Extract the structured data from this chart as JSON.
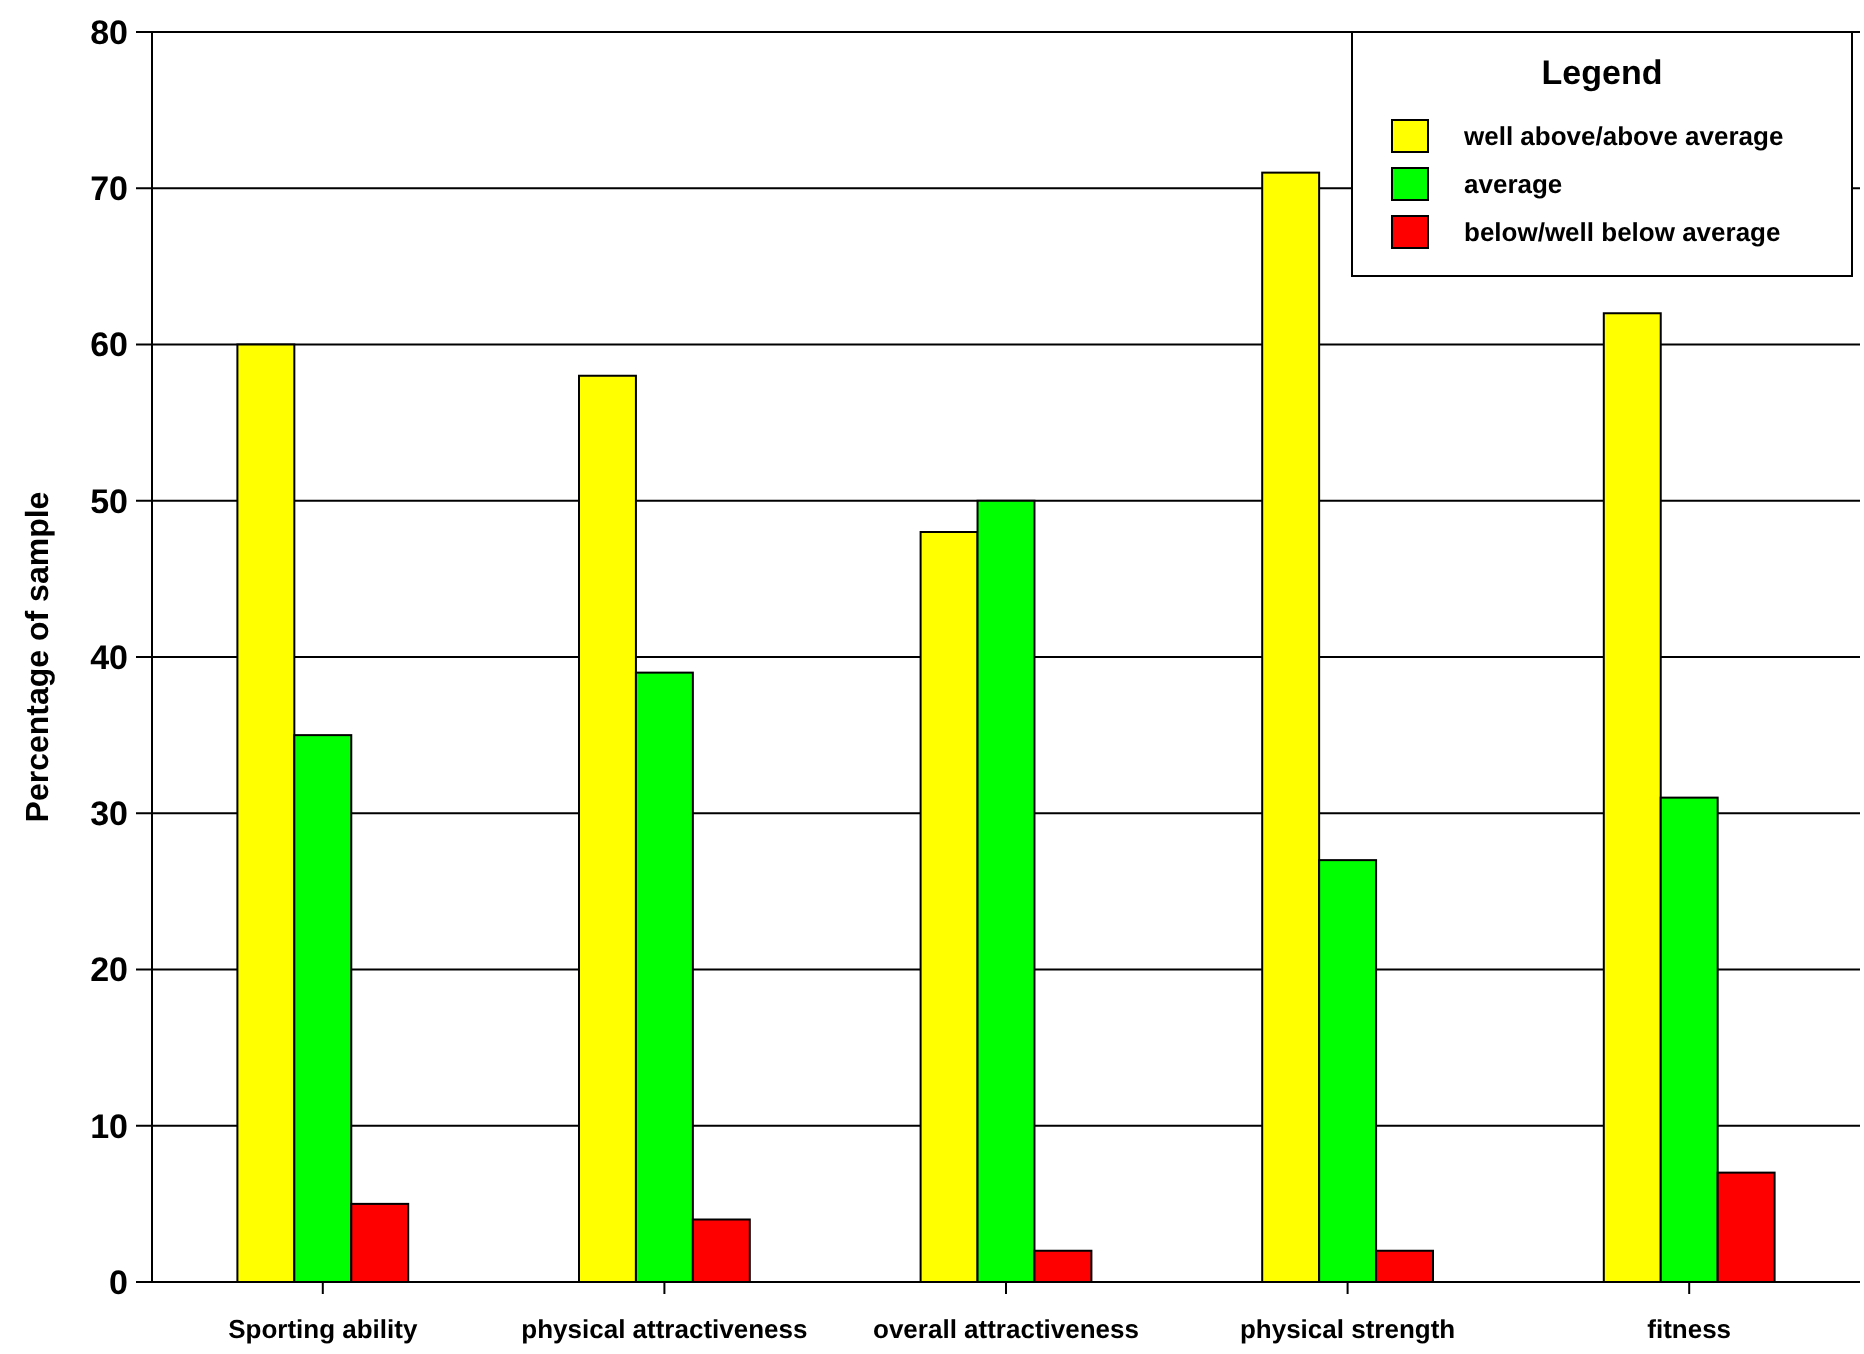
{
  "chart_data": {
    "type": "bar",
    "ylabel": "Percentage of sample",
    "legend_title": "Legend",
    "categories": [
      "Sporting ability",
      "physical attractiveness",
      "overall attractiveness",
      "physical strength",
      "fitness"
    ],
    "series": [
      {
        "name": "well above/above average",
        "color": "#ffff00",
        "values": [
          60,
          58,
          48,
          71,
          62
        ]
      },
      {
        "name": "average",
        "color": "#00ff00",
        "values": [
          35,
          39,
          50,
          27,
          31
        ]
      },
      {
        "name": "below/well below average",
        "color": "#ff0000",
        "values": [
          5,
          4,
          2,
          2,
          7
        ]
      }
    ],
    "ylim": [
      0,
      80
    ],
    "yticks": [
      0,
      10,
      20,
      30,
      40,
      50,
      60,
      70,
      80
    ],
    "grid": "y",
    "legend": "top right"
  }
}
